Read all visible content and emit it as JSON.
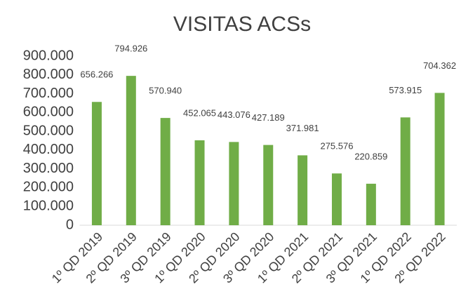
{
  "chart_data": {
    "type": "bar",
    "title": "VISITAS ACSs",
    "categories": [
      "1º QD 2019",
      "2º QD 2019",
      "3º QD 2019",
      "1º QD 2020",
      "2º QD 2020",
      "3º QD 2020",
      "1º QD 2021",
      "2º QD 2021",
      "3º QD 2021",
      "1º QD 2022",
      "2º QD 2022"
    ],
    "values": [
      656266,
      794926,
      570940,
      452065,
      443076,
      427189,
      371981,
      275576,
      220859,
      573915,
      704362
    ],
    "value_labels": [
      "656.266",
      "794.926",
      "570.940",
      "452.065",
      "443.076",
      "427.189",
      "371.981",
      "275.576",
      "220.859",
      "573.915",
      "704.362"
    ],
    "color": "#70ad47",
    "ylim": [
      0,
      900000
    ],
    "yticks": [
      0,
      {
        "value": 100000,
        "label": "100.000"
      },
      {
        "value": 200000,
        "label": "200.000"
      },
      {
        "value": 300000,
        "label": "300.000"
      },
      {
        "value": 400000,
        "label": "400.000"
      },
      {
        "value": 500000,
        "label": "500.000"
      },
      {
        "value": 600000,
        "label": "600.000"
      },
      {
        "value": 700000,
        "label": "700.000"
      },
      {
        "value": 800000,
        "label": "800.000"
      },
      {
        "value": 900000,
        "label": "900.000"
      }
    ],
    "grid": false
  }
}
